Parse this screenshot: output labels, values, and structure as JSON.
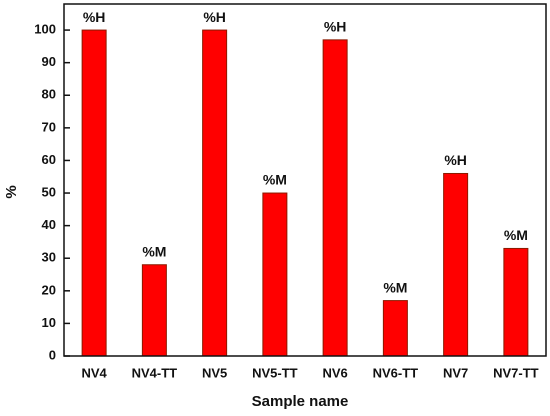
{
  "chart_data": {
    "type": "bar",
    "x_label": "Sample name",
    "y_label": "%",
    "categories": [
      "NV4",
      "NV4-TT",
      "NV5",
      "NV5-TT",
      "NV6",
      "NV6-TT",
      "NV7",
      "NV7-TT"
    ],
    "values": [
      100,
      28,
      100,
      50,
      97,
      17,
      56,
      33
    ],
    "bar_labels": [
      "%H",
      "%M",
      "%H",
      "%M",
      "%H",
      "%M",
      "%H",
      "%M"
    ],
    "color": "#ff0000",
    "ylim": [
      0,
      108
    ],
    "yticks": [
      0,
      10,
      20,
      30,
      40,
      50,
      60,
      70,
      80,
      90,
      100
    ]
  }
}
